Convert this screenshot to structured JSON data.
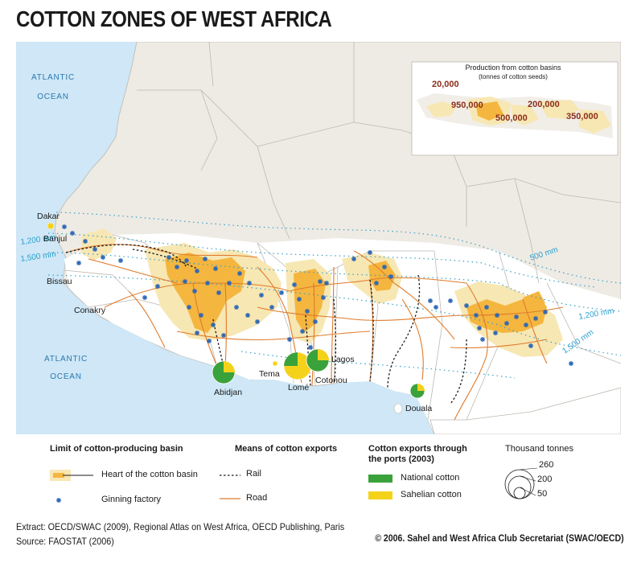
{
  "title": "COTTON ZONES OF WEST AFRICA",
  "oceans": [
    "ATLANTIC",
    "OCEAN",
    "ATLANTIC",
    "OCEAN"
  ],
  "cities": [
    "Dakar",
    "Banjul",
    "Bissau",
    "Conakry",
    "Abidjan",
    "Tema",
    "Lomé",
    "Cotonou",
    "Lagos",
    "Douala"
  ],
  "isohyets": [
    "1,200 mm",
    "1,500 mm",
    "500 mm",
    "1,200 mm",
    "1,500 mm"
  ],
  "inset": {
    "title": "Production from cotton basins",
    "subtitle": "(tonnes of cotton seeds)",
    "values": [
      "20,000",
      "950,000",
      "500,000",
      "200,000",
      "350,000"
    ]
  },
  "legend": {
    "basin_heading": "Limit of cotton-producing basin",
    "basin_heart": "Heart of the cotton basin",
    "ginning": "Ginning factory",
    "exports_heading": "Means of cotton exports",
    "rail": "Rail",
    "road": "Road",
    "ports_heading_1": "Cotton exports through",
    "ports_heading_2": "the ports (2003)",
    "national": "National cotton",
    "sahelian": "Sahelian cotton",
    "scale_title": "Thousand tonnes",
    "scale_values": [
      "260",
      "200",
      "50"
    ]
  },
  "colors": {
    "ocean": "#cfe7f6",
    "land": "#eeebe4",
    "basin": "#f7e7b3",
    "heart": "#f4b63f",
    "road": "#e07a2a",
    "rail": "#1a1a1a",
    "ginning": "#2a64b5",
    "national": "#3aa23a",
    "sahelian": "#f5d21a",
    "isohyet": "#3aa0c8"
  },
  "footer": {
    "extract": "Extract: OECD/SWAC (2009), Regional Atlas on West Africa, OECD Publishing, Paris",
    "source": "Source: FAOSTAT (2006)",
    "copyright": "© 2006. Sahel and West Africa Club Secretariat (SWAC/OECD)"
  }
}
